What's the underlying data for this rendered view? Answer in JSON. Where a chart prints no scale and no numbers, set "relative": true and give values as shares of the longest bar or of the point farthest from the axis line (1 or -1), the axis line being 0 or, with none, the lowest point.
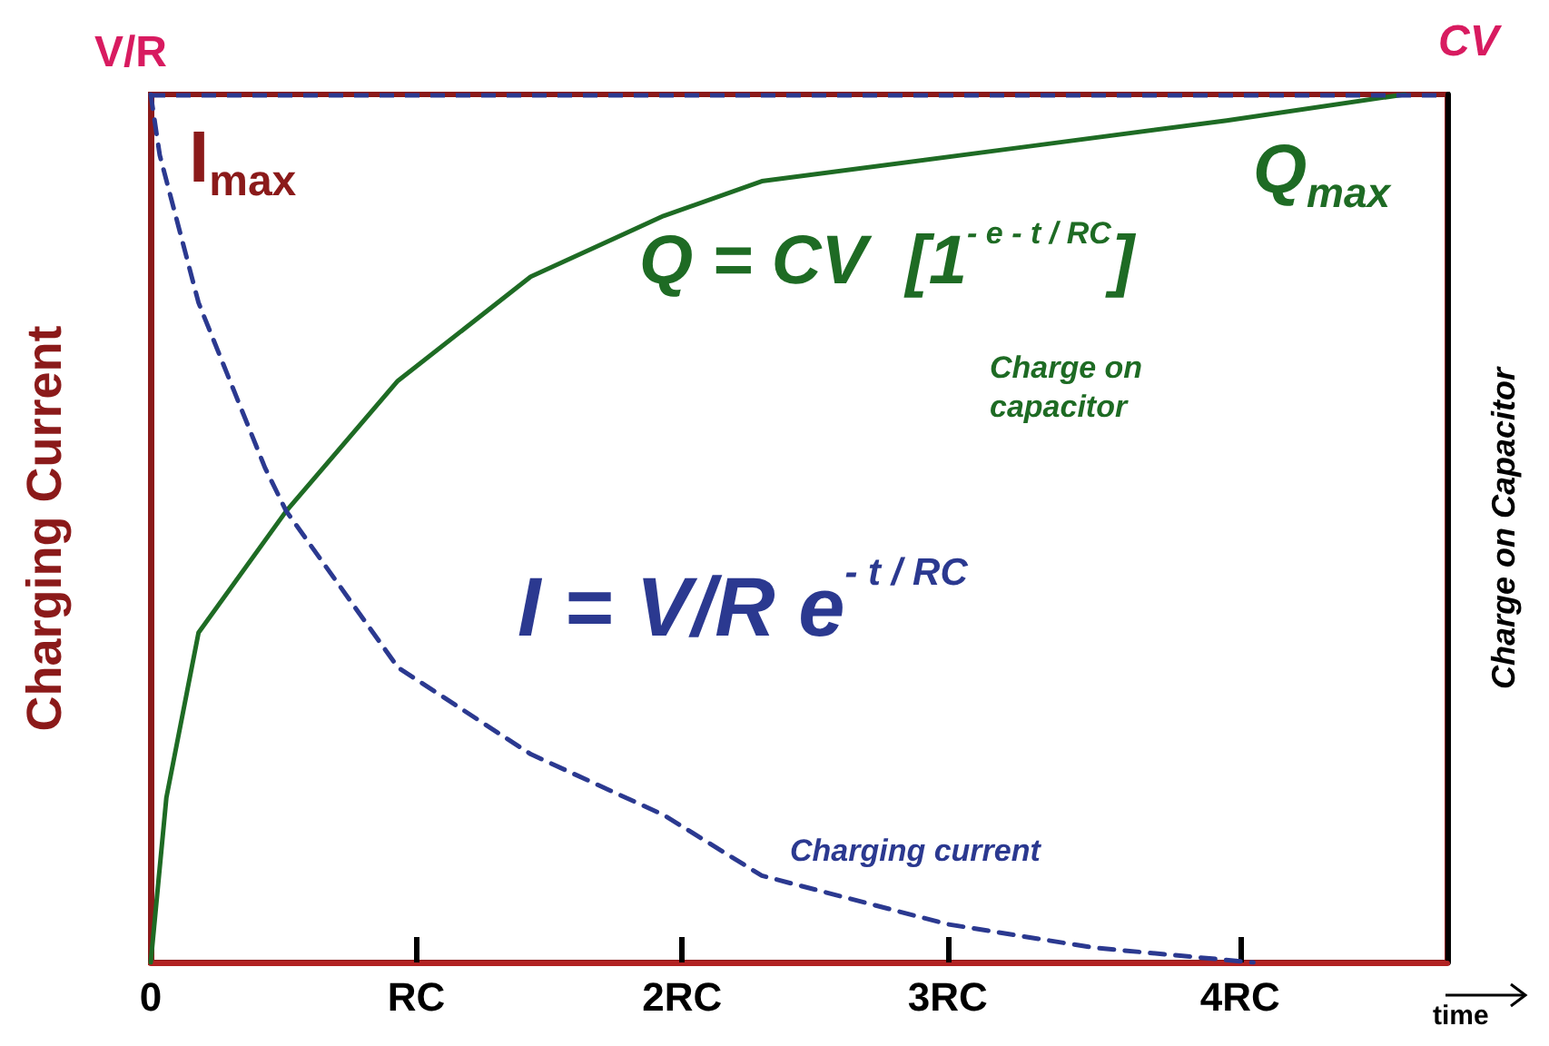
{
  "chart_data": {
    "type": "line",
    "relative": true,
    "xlabel": "time",
    "ylabel": "Charging Current",
    "y2label": "Charge on Capacitor",
    "xlim": [
      0,
      4.88
    ],
    "xticks": [
      {
        "value": 0,
        "label": "0"
      },
      {
        "value": 1,
        "label": "RC"
      },
      {
        "value": 2,
        "label": "2RC"
      },
      {
        "value": 3,
        "label": "3RC"
      },
      {
        "value": 4.1,
        "label": "4RC"
      }
    ],
    "series": [
      {
        "color": "#1e6b24",
        "line_style": "solid",
        "x": [
          0,
          0.059,
          0.18,
          0.51,
          0.93,
          1.43,
          1.93,
          2.3,
          3.3,
          4.05,
          4.72
        ],
        "values": [
          0,
          0.19,
          0.38,
          0.52,
          0.67,
          0.79,
          0.86,
          0.9,
          0.94,
          0.97,
          1
        ]
      },
      {
        "color": "#2b3990",
        "line_style": "dashed",
        "x": [
          0,
          0.034,
          0.18,
          0.43,
          0.51,
          0.93,
          1.43,
          1.93,
          2.3,
          3.0,
          3.55,
          4.15
        ],
        "values": [
          1,
          0.93,
          0.76,
          0.57,
          0.52,
          0.34,
          0.24,
          0.17,
          0.1,
          0.044,
          0.017,
          0
        ]
      }
    ],
    "ref_lines": [
      {
        "axis": "y",
        "value": 1,
        "color": "#2b3990",
        "line_style": "dashed"
      }
    ],
    "annotations": [
      "V/R",
      "CV",
      "I$_{max}$",
      "Q$_{max}$",
      "Q = CV  [1$^{- e - t / RC}$]",
      "Charge on capacitor",
      "I = V/R e$^{- t / RC}$",
      "Charging current"
    ],
    "grid": false,
    "legend": false,
    "marker": "none"
  }
}
